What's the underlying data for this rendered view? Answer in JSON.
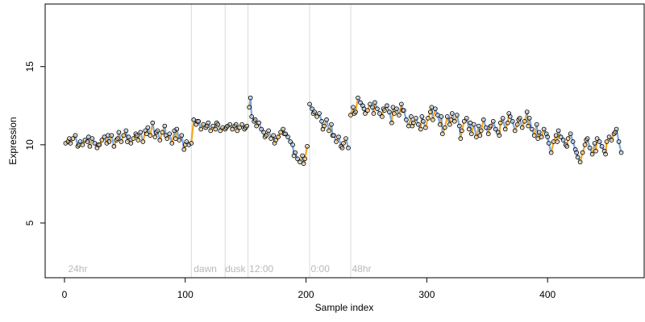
{
  "chart_data": {
    "type": "scatter",
    "title": "",
    "xlabel": "Sample index",
    "ylabel": "Expression",
    "xlim": [
      -16,
      480
    ],
    "ylim": [
      1.5,
      19.0
    ],
    "xticks": [
      0,
      100,
      200,
      300,
      400
    ],
    "yticks": [
      5,
      10,
      15
    ],
    "grid": false,
    "legend": "none",
    "colors": {
      "point_stroke": "#000000",
      "up": "#f5a623",
      "down": "#7aa7e0",
      "divider": "#d9d9d9",
      "annotation": "#b8b8b8"
    },
    "dividers": [
      105,
      133,
      152,
      203,
      237
    ],
    "annotations": [
      {
        "x": 3,
        "text": "24hr"
      },
      {
        "x": 107,
        "text": "dawn"
      },
      {
        "x": 133,
        "text": "dusk"
      },
      {
        "x": 153,
        "text": "12:00"
      },
      {
        "x": 204,
        "text": "0:00"
      },
      {
        "x": 238,
        "text": "48hr"
      }
    ],
    "series": [
      {
        "points": [
          [
            1,
            10.1
          ],
          [
            3,
            10.2
          ],
          [
            5,
            10.1
          ],
          [
            7,
            10.4
          ],
          [
            9,
            10.6
          ],
          [
            11,
            9.9
          ],
          [
            13,
            10.2
          ],
          [
            15,
            10.0
          ],
          [
            17,
            10.3
          ],
          [
            19,
            10.2
          ],
          [
            21,
            9.9
          ],
          [
            23,
            10.4
          ],
          [
            25,
            10.1
          ],
          [
            27,
            9.8
          ],
          [
            29,
            10.0
          ],
          [
            31,
            10.3
          ],
          [
            33,
            10.5
          ],
          [
            35,
            10.1
          ],
          [
            37,
            10.2
          ],
          [
            39,
            10.6
          ],
          [
            41,
            9.9
          ],
          [
            43,
            10.3
          ],
          [
            45,
            10.8
          ],
          [
            47,
            10.2
          ],
          [
            49,
            10.6
          ],
          [
            51,
            10.9
          ],
          [
            53,
            10.5
          ],
          [
            55,
            10.1
          ],
          [
            57,
            10.4
          ],
          [
            59,
            10.7
          ],
          [
            61,
            10.3
          ],
          [
            63,
            10.8
          ],
          [
            65,
            10.2
          ],
          [
            67,
            10.9
          ],
          [
            69,
            11.1
          ],
          [
            71,
            10.6
          ],
          [
            73,
            11.4
          ],
          [
            75,
            10.5
          ],
          [
            77,
            10.9
          ],
          [
            79,
            10.3
          ],
          [
            81,
            10.8
          ],
          [
            83,
            11.2
          ],
          [
            85,
            10.4
          ],
          [
            87,
            10.7
          ],
          [
            89,
            10.1
          ],
          [
            91,
            10.9
          ],
          [
            93,
            11.0
          ],
          [
            95,
            10.3
          ],
          [
            97,
            10.6
          ],
          [
            99,
            9.7
          ],
          [
            101,
            10.2
          ],
          [
            103,
            10.0
          ],
          [
            105,
            10.1
          ],
          [
            107,
            11.6
          ],
          [
            109,
            11.3
          ],
          [
            111,
            11.5
          ],
          [
            113,
            11.0
          ],
          [
            115,
            11.3
          ],
          [
            117,
            11.1
          ],
          [
            119,
            11.4
          ],
          [
            121,
            10.9
          ],
          [
            123,
            11.2
          ],
          [
            125,
            11.0
          ],
          [
            127,
            11.3
          ],
          [
            129,
            10.9
          ],
          [
            131,
            11.1
          ],
          [
            133,
            11.0
          ],
          [
            135,
            11.2
          ],
          [
            137,
            11.3
          ],
          [
            139,
            11.0
          ],
          [
            141,
            11.2
          ],
          [
            143,
            10.9
          ],
          [
            145,
            11.1
          ],
          [
            147,
            11.3
          ],
          [
            149,
            11.0
          ],
          [
            151,
            11.2
          ],
          [
            153,
            12.4
          ],
          [
            154,
            13.0
          ],
          [
            155,
            11.8
          ],
          [
            157,
            11.5
          ],
          [
            159,
            11.2
          ],
          [
            161,
            11.4
          ],
          [
            163,
            11.0
          ],
          [
            165,
            10.8
          ],
          [
            167,
            10.6
          ],
          [
            169,
            10.9
          ],
          [
            171,
            10.4
          ],
          [
            173,
            10.6
          ],
          [
            175,
            10.3
          ],
          [
            177,
            10.5
          ],
          [
            179,
            10.8
          ],
          [
            181,
            11.0
          ],
          [
            183,
            10.7
          ],
          [
            185,
            10.5
          ],
          [
            187,
            10.2
          ],
          [
            189,
            10.0
          ],
          [
            191,
            9.5
          ],
          [
            193,
            9.1
          ],
          [
            195,
            8.9
          ],
          [
            197,
            9.3
          ],
          [
            199,
            9.1
          ],
          [
            201,
            9.9
          ],
          [
            203,
            12.6
          ],
          [
            205,
            12.3
          ],
          [
            207,
            12.1
          ],
          [
            209,
            11.8
          ],
          [
            211,
            12.0
          ],
          [
            213,
            11.5
          ],
          [
            215,
            11.2
          ],
          [
            217,
            11.6
          ],
          [
            219,
            10.9
          ],
          [
            221,
            11.3
          ],
          [
            223,
            10.6
          ],
          [
            225,
            10.2
          ],
          [
            227,
            10.5
          ],
          [
            229,
            9.9
          ],
          [
            231,
            10.1
          ],
          [
            233,
            10.4
          ],
          [
            235,
            9.8
          ],
          [
            237,
            11.9
          ],
          [
            239,
            12.4
          ],
          [
            241,
            12.1
          ],
          [
            243,
            13.0
          ],
          [
            245,
            12.7
          ],
          [
            247,
            12.5
          ],
          [
            249,
            12.0
          ],
          [
            251,
            12.2
          ],
          [
            253,
            12.6
          ],
          [
            255,
            12.4
          ],
          [
            257,
            12.7
          ],
          [
            259,
            12.3
          ],
          [
            261,
            12.0
          ],
          [
            263,
            11.8
          ],
          [
            265,
            12.2
          ],
          [
            267,
            12.5
          ],
          [
            269,
            12.1
          ],
          [
            271,
            11.4
          ],
          [
            273,
            12.0
          ],
          [
            275,
            12.3
          ],
          [
            277,
            11.9
          ],
          [
            279,
            12.6
          ],
          [
            281,
            12.2
          ],
          [
            283,
            11.6
          ],
          [
            285,
            11.2
          ],
          [
            287,
            11.8
          ],
          [
            289,
            11.4
          ],
          [
            291,
            11.7
          ],
          [
            293,
            11.3
          ],
          [
            295,
            11.0
          ],
          [
            297,
            11.5
          ],
          [
            299,
            11.1
          ],
          [
            301,
            11.7
          ],
          [
            303,
            12.1
          ],
          [
            305,
            11.6
          ],
          [
            307,
            12.3
          ],
          [
            309,
            11.9
          ],
          [
            311,
            11.3
          ],
          [
            313,
            10.7
          ],
          [
            315,
            11.1
          ],
          [
            317,
            11.8
          ],
          [
            319,
            11.3
          ],
          [
            321,
            12.0
          ],
          [
            323,
            11.5
          ],
          [
            325,
            11.9
          ],
          [
            327,
            11.2
          ],
          [
            329,
            10.9
          ],
          [
            331,
            11.5
          ],
          [
            333,
            11.7
          ],
          [
            335,
            11.0
          ],
          [
            337,
            10.7
          ],
          [
            339,
            11.3
          ],
          [
            341,
            10.5
          ],
          [
            343,
            11.2
          ],
          [
            345,
            10.9
          ],
          [
            347,
            11.6
          ],
          [
            349,
            11.1
          ],
          [
            351,
            10.7
          ],
          [
            353,
            11.2
          ],
          [
            355,
            11.5
          ],
          [
            357,
            11.0
          ],
          [
            359,
            10.8
          ],
          [
            361,
            11.4
          ],
          [
            363,
            11.7
          ],
          [
            365,
            11.0
          ],
          [
            367,
            11.4
          ],
          [
            369,
            11.8
          ],
          [
            371,
            11.5
          ],
          [
            373,
            10.9
          ],
          [
            375,
            11.3
          ],
          [
            377,
            11.7
          ],
          [
            379,
            11.1
          ],
          [
            381,
            11.5
          ],
          [
            383,
            12.1
          ],
          [
            385,
            11.7
          ],
          [
            387,
            11.0
          ],
          [
            389,
            10.6
          ],
          [
            391,
            11.3
          ],
          [
            393,
            10.8
          ],
          [
            395,
            10.5
          ],
          [
            397,
            11.0
          ],
          [
            399,
            10.7
          ],
          [
            401,
            10.1
          ],
          [
            403,
            9.5
          ],
          [
            405,
            10.2
          ],
          [
            407,
            10.6
          ],
          [
            409,
            10.9
          ],
          [
            411,
            10.5
          ],
          [
            413,
            10.3
          ],
          [
            415,
            10.0
          ],
          [
            417,
            10.4
          ],
          [
            419,
            10.7
          ],
          [
            421,
            10.2
          ],
          [
            423,
            9.7
          ],
          [
            425,
            9.2
          ],
          [
            427,
            8.9
          ],
          [
            429,
            9.5
          ],
          [
            431,
            10.0
          ],
          [
            433,
            10.4
          ],
          [
            435,
            9.8
          ],
          [
            437,
            9.4
          ],
          [
            439,
            10.1
          ],
          [
            441,
            10.4
          ],
          [
            443,
            10.2
          ],
          [
            445,
            9.9
          ],
          [
            447,
            9.6
          ],
          [
            449,
            10.2
          ],
          [
            451,
            10.5
          ],
          [
            453,
            10.3
          ],
          [
            455,
            10.7
          ],
          [
            457,
            11.0
          ],
          [
            459,
            10.2
          ],
          [
            461,
            9.5
          ],
          [
            4,
            10.4
          ],
          [
            12,
            10.0
          ],
          [
            20,
            10.5
          ],
          [
            28,
            10.0
          ],
          [
            36,
            10.6
          ],
          [
            44,
            10.4
          ],
          [
            52,
            10.2
          ],
          [
            60,
            10.6
          ],
          [
            68,
            10.7
          ],
          [
            76,
            10.8
          ],
          [
            84,
            10.6
          ],
          [
            92,
            10.4
          ],
          [
            100,
            10.0
          ],
          [
            110,
            11.5
          ],
          [
            118,
            11.2
          ],
          [
            126,
            11.4
          ],
          [
            134,
            11.1
          ],
          [
            142,
            11.3
          ],
          [
            150,
            11.1
          ],
          [
            158,
            11.6
          ],
          [
            166,
            10.5
          ],
          [
            174,
            10.1
          ],
          [
            182,
            10.7
          ],
          [
            190,
            9.3
          ],
          [
            198,
            8.8
          ],
          [
            206,
            12.0
          ],
          [
            214,
            11.0
          ],
          [
            222,
            10.6
          ],
          [
            230,
            9.8
          ],
          [
            240,
            12.0
          ],
          [
            248,
            12.3
          ],
          [
            256,
            12.0
          ],
          [
            264,
            12.3
          ],
          [
            272,
            12.4
          ],
          [
            280,
            12.2
          ],
          [
            288,
            11.2
          ],
          [
            296,
            11.8
          ],
          [
            304,
            12.4
          ],
          [
            312,
            11.8
          ],
          [
            320,
            11.6
          ],
          [
            328,
            10.4
          ],
          [
            336,
            11.4
          ],
          [
            344,
            10.6
          ],
          [
            352,
            11.1
          ],
          [
            360,
            10.6
          ],
          [
            368,
            12.0
          ],
          [
            376,
            11.6
          ],
          [
            384,
            11.2
          ],
          [
            392,
            10.4
          ],
          [
            400,
            10.5
          ],
          [
            408,
            10.2
          ],
          [
            416,
            9.9
          ],
          [
            424,
            9.5
          ],
          [
            432,
            10.3
          ],
          [
            440,
            9.6
          ],
          [
            448,
            9.4
          ],
          [
            456,
            10.8
          ]
        ]
      }
    ]
  }
}
